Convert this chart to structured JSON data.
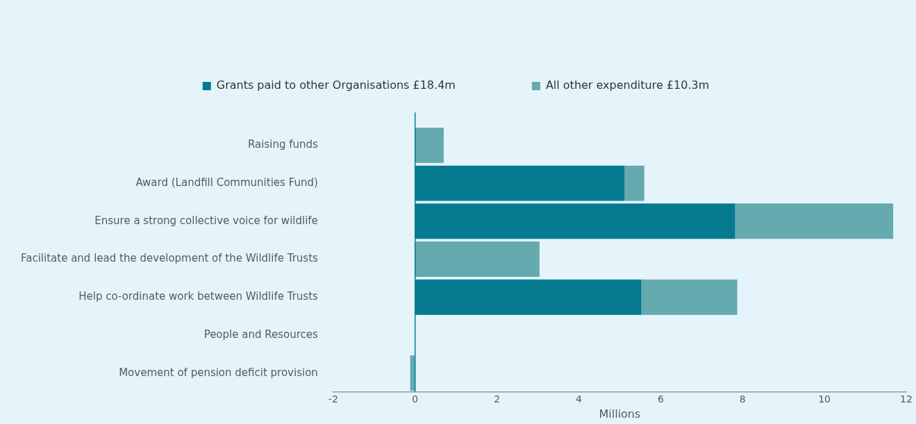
{
  "chart_data": {
    "type": "bar",
    "orientation": "horizontal",
    "stacked": true,
    "categories": [
      "Raising funds",
      "Award (Landfill Communities Fund)",
      "Ensure a strong collective voice for wildlife",
      "Facilitate and lead the development of the Wildlife Trusts",
      "Help co-ordinate work between Wildlife Trusts",
      "People and Resources",
      "Movement of pension deficit provision"
    ],
    "series": [
      {
        "name": "Grants paid to other Organisations £18.4m",
        "color": "#057a91",
        "values": [
          0,
          5.12,
          7.82,
          null,
          5.53,
          0,
          0
        ]
      },
      {
        "name": "All other expenditure £10.3m",
        "color": "#64aaae",
        "values": [
          0.7,
          0.48,
          3.86,
          3.04,
          2.34,
          0,
          -0.12
        ]
      }
    ],
    "ref_lines": [
      {
        "axis": "x",
        "value": 0,
        "color": "#057a91"
      }
    ],
    "xlim": [
      -2,
      12
    ],
    "xticks": [
      -2,
      0,
      2,
      4,
      6,
      8,
      10,
      12
    ],
    "xlabel": "Millions",
    "grid": false,
    "legend": "top"
  }
}
